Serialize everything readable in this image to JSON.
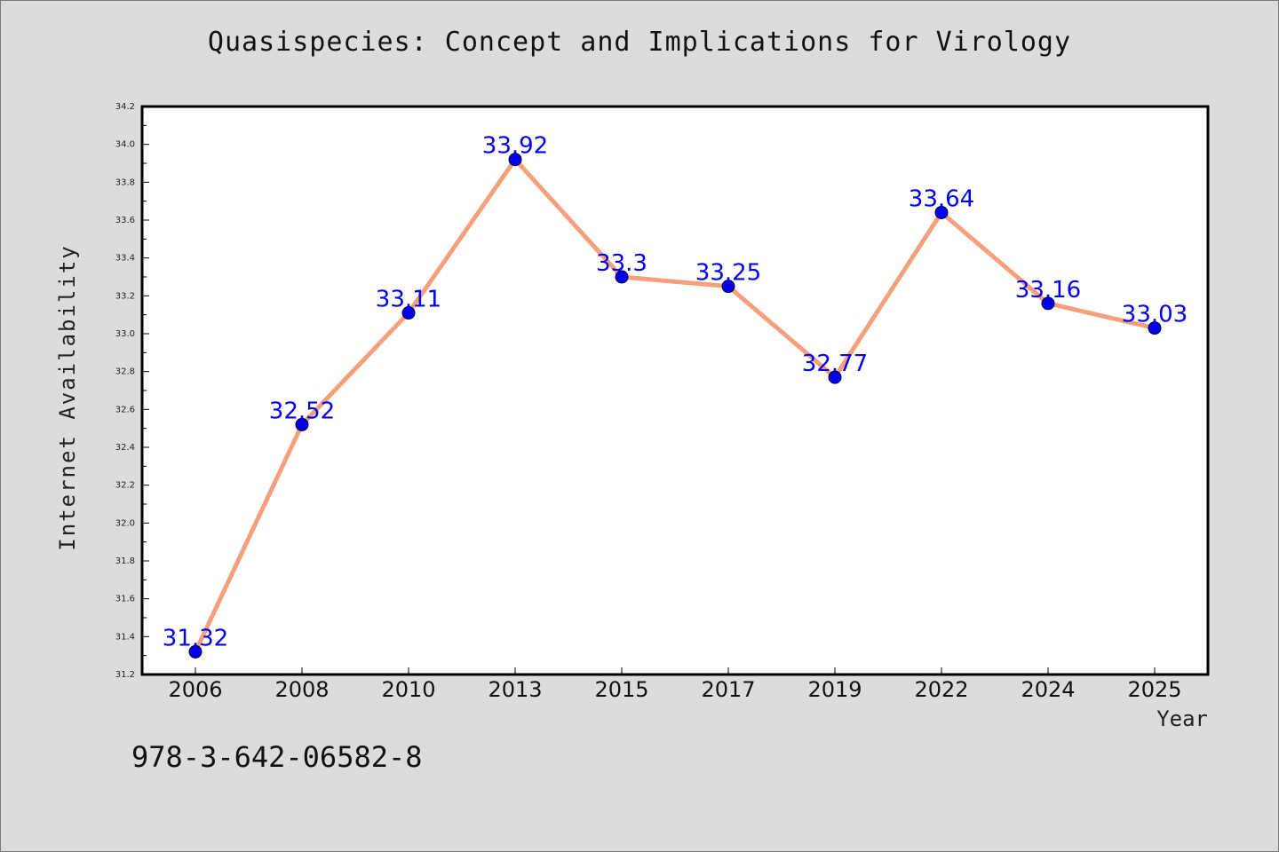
{
  "chart_data": {
    "type": "line",
    "title": "Quasispecies: Concept and Implications for Virology",
    "xlabel": "Year",
    "ylabel": "Internet Availability",
    "categories": [
      "2006",
      "2008",
      "2010",
      "2013",
      "2015",
      "2017",
      "2019",
      "2022",
      "2024",
      "2025"
    ],
    "series": [
      {
        "values": [
          31.32,
          32.52,
          33.11,
          33.92,
          33.3,
          33.25,
          32.77,
          33.64,
          33.16,
          33.03
        ],
        "data_labels": [
          "31.32",
          "32.52",
          "33.11",
          "33.92",
          "33.3",
          "33.25",
          "32.77",
          "33.64",
          "33.16",
          "33.03"
        ],
        "line_color": "#f4a07c",
        "marker_color": "#0000ee",
        "label_color": "#0000ee"
      }
    ],
    "ylim": [
      31.2,
      34.2
    ],
    "y_ticks": [
      "31.2",
      "31.4",
      "31.6",
      "31.8",
      "32.0",
      "32.2",
      "32.4",
      "32.6",
      "32.8",
      "33.0",
      "33.2",
      "33.4",
      "33.6",
      "33.8",
      "34.0",
      "34.2"
    ],
    "grid": false,
    "legend": "none",
    "plot_background": "#ffffff",
    "page_background": "#dcdcdc"
  },
  "footer": {
    "identifier": "978-3-642-06582-8"
  }
}
